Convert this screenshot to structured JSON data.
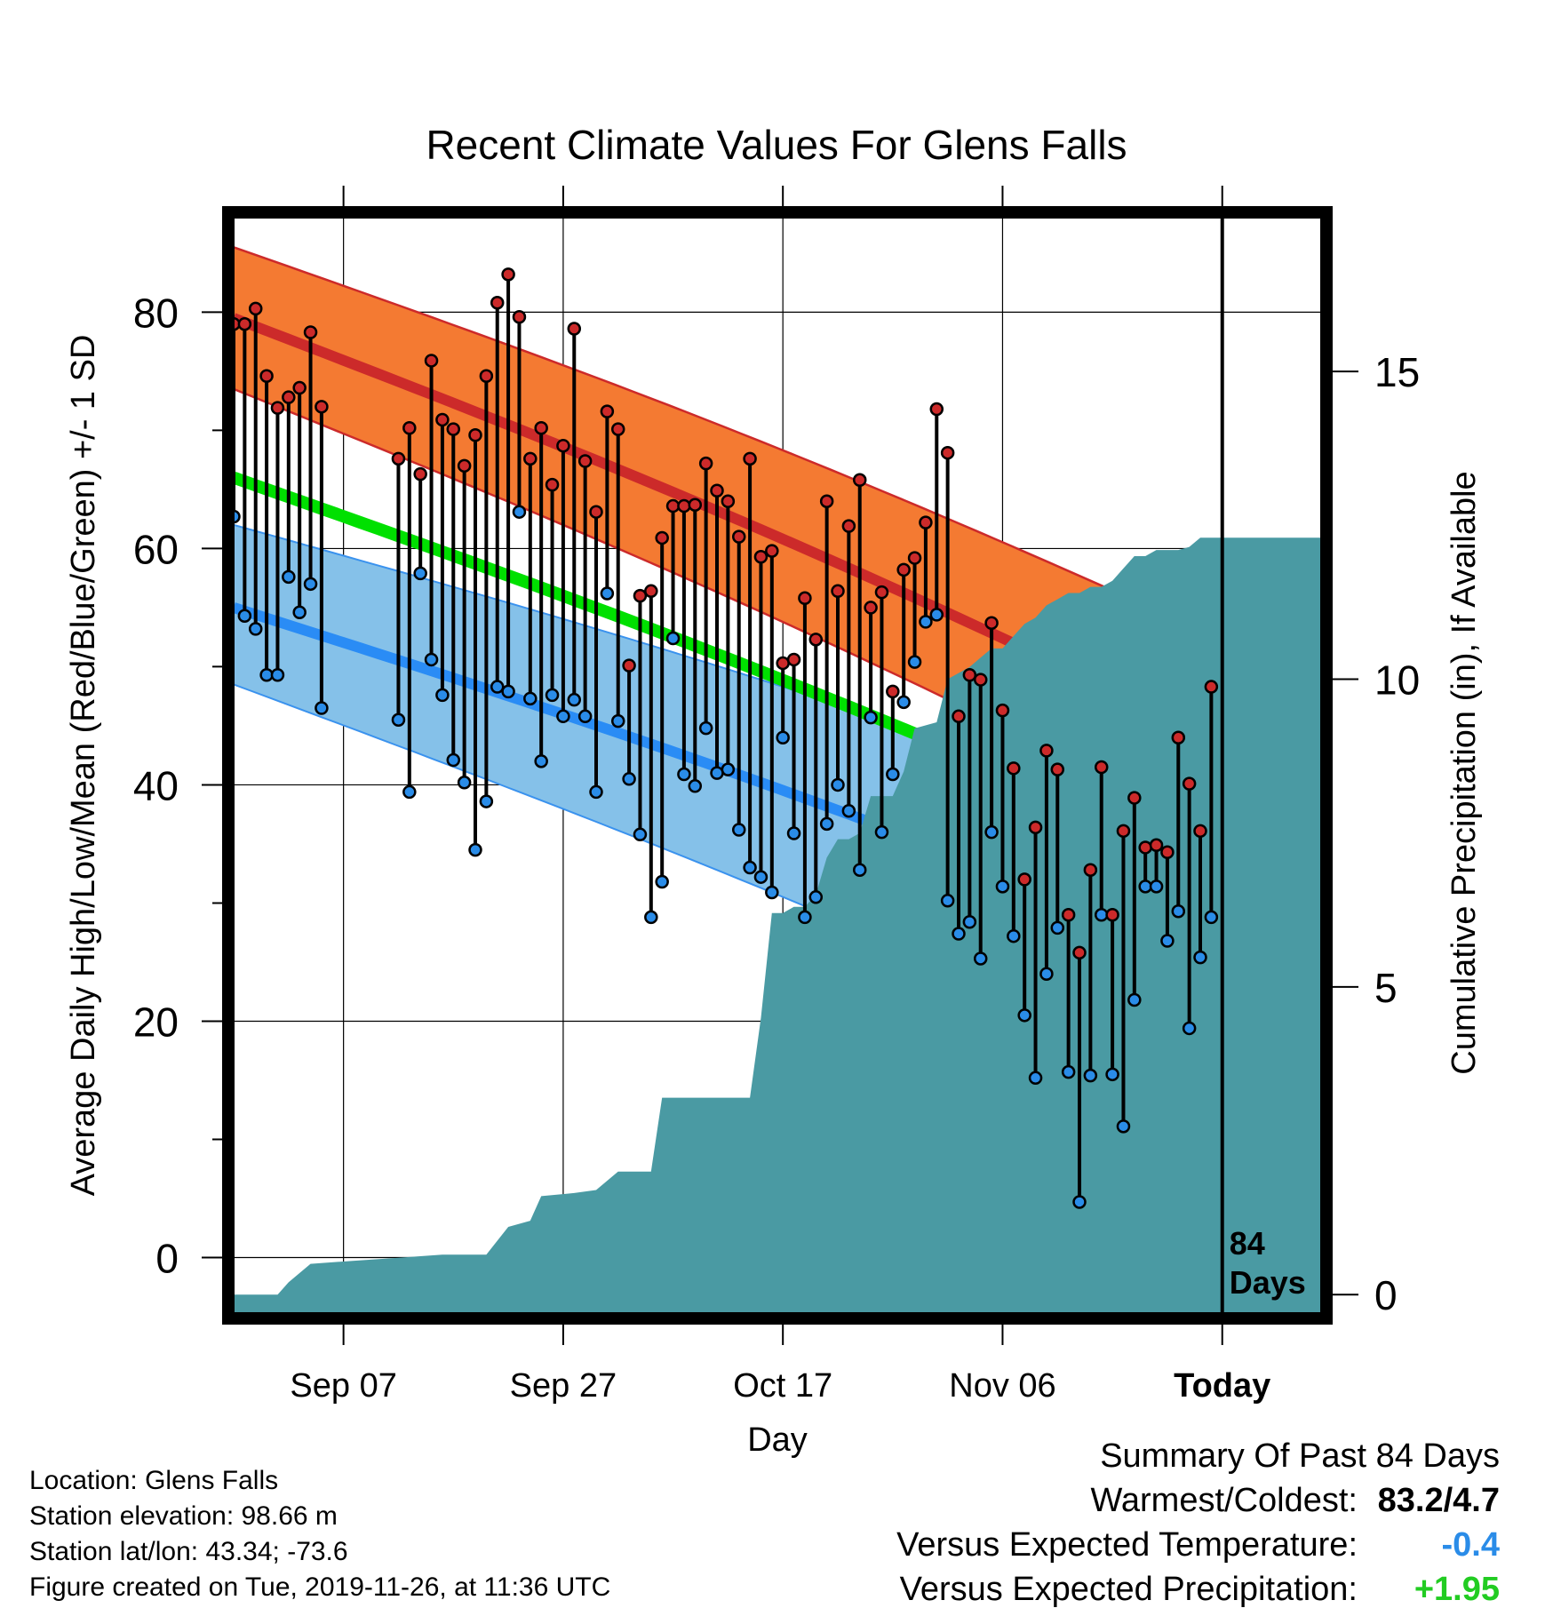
{
  "title": "Recent Climate Values For Glens Falls",
  "chart_data": {
    "type": "line",
    "title": "Recent Climate Values For Glens Falls",
    "xlabel": "Day",
    "ylabel": "Average Daily High/Low/Mean (Red/Blue/Green) +/- 1 SD",
    "y2label": "Cumulative Precipitation (in), If Available",
    "xlim": [
      1,
      100
    ],
    "ylim": [
      -4.7,
      88
    ],
    "y2lim": [
      -0.3,
      17.5
    ],
    "x_tick_labels": [
      {
        "x": 11,
        "label": "Sep 07"
      },
      {
        "x": 31,
        "label": "Sep 27"
      },
      {
        "x": 51,
        "label": "Oct 17"
      },
      {
        "x": 71,
        "label": "Nov 06"
      },
      {
        "x": 91,
        "label": "Today"
      }
    ],
    "y_ticks": [
      0,
      20,
      40,
      60,
      80
    ],
    "y2_ticks": [
      0,
      5,
      10,
      15
    ],
    "today_x": 91,
    "days_label": [
      "84",
      "Days"
    ],
    "normal_high": {
      "x": [
        1,
        100
      ],
      "y": [
        79.5,
        39.5
      ]
    },
    "normal_high_band": {
      "upper": [
        85.5,
        48.5
      ],
      "lower": [
        73.5,
        31.5
      ]
    },
    "normal_mean": {
      "x": [
        1,
        100
      ],
      "y": [
        66.0,
        29.5
      ]
    },
    "normal_low": {
      "x": [
        1,
        100
      ],
      "y": [
        55.0,
        22.0
      ]
    },
    "normal_low_band": {
      "upper": [
        62.0,
        32.5
      ],
      "lower": [
        48.5,
        10.5
      ]
    },
    "precip_cumulative": [
      [
        1,
        0.0
      ],
      [
        5,
        0.0
      ],
      [
        6,
        0.2
      ],
      [
        8,
        0.5
      ],
      [
        12,
        0.55
      ],
      [
        16,
        0.6
      ],
      [
        20,
        0.65
      ],
      [
        24,
        0.65
      ],
      [
        26,
        1.1
      ],
      [
        28,
        1.2
      ],
      [
        29,
        1.6
      ],
      [
        32,
        1.65
      ],
      [
        34,
        1.7
      ],
      [
        36,
        2.0
      ],
      [
        39,
        2.0
      ],
      [
        40,
        3.2
      ],
      [
        48,
        3.2
      ],
      [
        49,
        4.5
      ],
      [
        50,
        6.2
      ],
      [
        51,
        6.2
      ],
      [
        52,
        6.3
      ],
      [
        53,
        6.3
      ],
      [
        54,
        6.5
      ],
      [
        55,
        7.1
      ],
      [
        56,
        7.4
      ],
      [
        57,
        7.4
      ],
      [
        58,
        7.5
      ],
      [
        59,
        8.1
      ],
      [
        60,
        8.1
      ],
      [
        61,
        8.1
      ],
      [
        62,
        8.5
      ],
      [
        63,
        9.2
      ],
      [
        65,
        9.3
      ],
      [
        66,
        10.0
      ],
      [
        67,
        10.1
      ],
      [
        68,
        10.2
      ],
      [
        69,
        10.35
      ],
      [
        70,
        10.5
      ],
      [
        71,
        10.5
      ],
      [
        72,
        10.7
      ],
      [
        73,
        10.9
      ],
      [
        74,
        11.0
      ],
      [
        75,
        11.2
      ],
      [
        76,
        11.3
      ],
      [
        77,
        11.4
      ],
      [
        78,
        11.4
      ],
      [
        79,
        11.5
      ],
      [
        80,
        11.5
      ],
      [
        81,
        11.6
      ],
      [
        82,
        11.8
      ],
      [
        83,
        12.0
      ],
      [
        84,
        12.0
      ],
      [
        85,
        12.1
      ],
      [
        86,
        12.1
      ],
      [
        87,
        12.1
      ],
      [
        88,
        12.15
      ],
      [
        89,
        12.3
      ],
      [
        90,
        12.3
      ],
      [
        100,
        12.3
      ]
    ],
    "daily": [
      {
        "x": 1,
        "high": 79.0,
        "low": 62.7
      },
      {
        "x": 2,
        "high": 79.0,
        "low": 54.3
      },
      {
        "x": 3,
        "high": 80.3,
        "low": 53.2
      },
      {
        "x": 4,
        "high": 74.6,
        "low": 49.3
      },
      {
        "x": 5,
        "high": 71.9,
        "low": 49.3
      },
      {
        "x": 6,
        "high": 72.8,
        "low": 57.6
      },
      {
        "x": 7,
        "high": 73.6,
        "low": 54.6
      },
      {
        "x": 8,
        "high": 78.3,
        "low": 57.0
      },
      {
        "x": 9,
        "high": 72.0,
        "low": 46.5
      },
      {
        "x": 16,
        "high": 67.6,
        "low": 45.5
      },
      {
        "x": 17,
        "high": 70.2,
        "low": 39.4
      },
      {
        "x": 18,
        "high": 66.3,
        "low": 57.9
      },
      {
        "x": 19,
        "high": 75.9,
        "low": 50.6
      },
      {
        "x": 20,
        "high": 70.9,
        "low": 47.6
      },
      {
        "x": 21,
        "high": 70.1,
        "low": 42.1
      },
      {
        "x": 22,
        "high": 67.0,
        "low": 40.2
      },
      {
        "x": 23,
        "high": 69.6,
        "low": 34.5
      },
      {
        "x": 24,
        "high": 74.6,
        "low": 38.6
      },
      {
        "x": 25,
        "high": 80.8,
        "low": 48.3
      },
      {
        "x": 26,
        "high": 83.2,
        "low": 47.9
      },
      {
        "x": 27,
        "high": 79.6,
        "low": 63.1
      },
      {
        "x": 28,
        "high": 67.6,
        "low": 47.3
      },
      {
        "x": 29,
        "high": 70.2,
        "low": 42.0
      },
      {
        "x": 30,
        "high": 65.4,
        "low": 47.6
      },
      {
        "x": 31,
        "high": 68.7,
        "low": 45.8
      },
      {
        "x": 32,
        "high": 78.6,
        "low": 47.2
      },
      {
        "x": 33,
        "high": 67.4,
        "low": 45.8
      },
      {
        "x": 34,
        "high": 63.1,
        "low": 39.4
      },
      {
        "x": 35,
        "high": 71.6,
        "low": 56.2
      },
      {
        "x": 36,
        "high": 70.1,
        "low": 45.4
      },
      {
        "x": 37,
        "high": 50.1,
        "low": 40.5
      },
      {
        "x": 38,
        "high": 56.0,
        "low": 35.8
      },
      {
        "x": 39,
        "high": 56.4,
        "low": 28.8
      },
      {
        "x": 40,
        "high": 60.9,
        "low": 31.8
      },
      {
        "x": 41,
        "high": 63.6,
        "low": 52.4
      },
      {
        "x": 42,
        "high": 63.6,
        "low": 40.9
      },
      {
        "x": 43,
        "high": 63.7,
        "low": 39.9
      },
      {
        "x": 44,
        "high": 67.2,
        "low": 44.8
      },
      {
        "x": 45,
        "high": 64.9,
        "low": 41.0
      },
      {
        "x": 46,
        "high": 64.0,
        "low": 41.3
      },
      {
        "x": 47,
        "high": 61.0,
        "low": 36.2
      },
      {
        "x": 48,
        "high": 67.6,
        "low": 33.0
      },
      {
        "x": 49,
        "high": 59.3,
        "low": 32.2
      },
      {
        "x": 50,
        "high": 59.8,
        "low": 30.9
      },
      {
        "x": 51,
        "high": 50.3,
        "low": 44.0
      },
      {
        "x": 52,
        "high": 50.6,
        "low": 35.9
      },
      {
        "x": 53,
        "high": 55.8,
        "low": 28.8
      },
      {
        "x": 54,
        "high": 52.3,
        "low": 30.5
      },
      {
        "x": 55,
        "high": 64.0,
        "low": 36.7
      },
      {
        "x": 56,
        "high": 56.4,
        "low": 40.0
      },
      {
        "x": 57,
        "high": 61.9,
        "low": 37.8
      },
      {
        "x": 58,
        "high": 65.8,
        "low": 32.8
      },
      {
        "x": 59,
        "high": 55.0,
        "low": 45.7
      },
      {
        "x": 60,
        "high": 56.3,
        "low": 36.0
      },
      {
        "x": 61,
        "high": 47.9,
        "low": 40.9
      },
      {
        "x": 62,
        "high": 58.2,
        "low": 47.0
      },
      {
        "x": 63,
        "high": 59.2,
        "low": 50.4
      },
      {
        "x": 64,
        "high": 62.2,
        "low": 53.8
      },
      {
        "x": 65,
        "high": 71.8,
        "low": 54.4
      },
      {
        "x": 66,
        "high": 68.1,
        "low": 30.2
      },
      {
        "x": 67,
        "high": 45.8,
        "low": 27.4
      },
      {
        "x": 68,
        "high": 49.3,
        "low": 28.4
      },
      {
        "x": 69,
        "high": 48.9,
        "low": 25.3
      },
      {
        "x": 70,
        "high": 53.7,
        "low": 36.0
      },
      {
        "x": 71,
        "high": 46.3,
        "low": 31.4
      },
      {
        "x": 72,
        "high": 41.4,
        "low": 27.2
      },
      {
        "x": 73,
        "high": 32.0,
        "low": 20.5
      },
      {
        "x": 74,
        "high": 36.4,
        "low": 15.2
      },
      {
        "x": 75,
        "high": 42.9,
        "low": 24.0
      },
      {
        "x": 76,
        "high": 41.3,
        "low": 27.9
      },
      {
        "x": 77,
        "high": 29.0,
        "low": 15.7
      },
      {
        "x": 78,
        "high": 25.8,
        "low": 4.7
      },
      {
        "x": 79,
        "high": 32.8,
        "low": 15.4
      },
      {
        "x": 80,
        "high": 41.5,
        "low": 29.0
      },
      {
        "x": 81,
        "high": 29.0,
        "low": 15.5
      },
      {
        "x": 82,
        "high": 36.1,
        "low": 11.1
      },
      {
        "x": 83,
        "high": 38.9,
        "low": 21.8
      },
      {
        "x": 84,
        "high": 34.7,
        "low": 31.4
      },
      {
        "x": 85,
        "high": 34.9,
        "low": 31.4
      },
      {
        "x": 86,
        "high": 34.3,
        "low": 26.8
      },
      {
        "x": 87,
        "high": 44.0,
        "low": 29.3
      },
      {
        "x": 88,
        "high": 40.1,
        "low": 19.4
      },
      {
        "x": 89,
        "high": 36.1,
        "low": 25.4
      },
      {
        "x": 90,
        "high": 48.3,
        "low": 28.8
      }
    ]
  },
  "colors": {
    "high_band": "#f47a32",
    "high_line": "#cc2a2a",
    "high_line_overlap": "#8e1f1f",
    "mean_line": "#00e000",
    "low_band": "#85c1e9",
    "low_line": "#2a8cf5",
    "low_band_edge": "#3a92ee",
    "precip_fill": "#4a9aa3",
    "high_dot": "#cc2a2a",
    "low_dot": "#2a8ce8",
    "frame": "#000000",
    "positive": "#22cc22",
    "negative": "#2a8ce8"
  },
  "info": {
    "location": "Location: Glens Falls",
    "elevation": "Station elevation: 98.66 m",
    "latlon": "Station lat/lon: 43.34; -73.6",
    "created": "Figure created on Tue, 2019-11-26, at 11:36 UTC"
  },
  "summary": {
    "title": "Summary Of Past 84 Days",
    "warmest_coldest_label": "Warmest/Coldest:",
    "warmest_coldest_value": "83.2/4.7",
    "temp_label": "Versus Expected Temperature:",
    "temp_value": "-0.4",
    "precip_label": "Versus Expected Precipitation:",
    "precip_value": "+1.95"
  }
}
